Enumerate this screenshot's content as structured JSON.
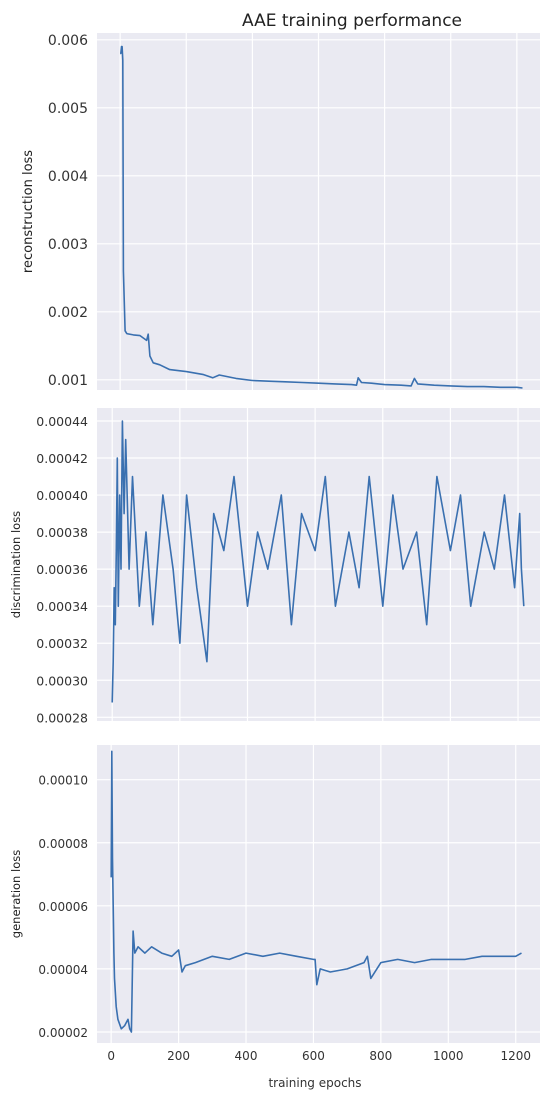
{
  "figure": {
    "title": "AAE training performance",
    "xlabel": "training epochs"
  },
  "colors": {
    "line": "#3a70b0",
    "panel_bg": "#eaeaf2",
    "grid": "#ffffff"
  },
  "chart_data": [
    {
      "type": "line",
      "title": "AAE training performance",
      "ylabel": "reconstruction loss",
      "xlim": [
        -70,
        1270
      ],
      "ylim": [
        0.00085,
        0.0061
      ],
      "yticks": [
        0.001,
        0.002,
        0.003,
        0.004,
        0.005,
        0.006
      ],
      "ytick_labels": [
        "0.001",
        "0.002",
        "0.003",
        "0.004",
        "0.005",
        "0.006"
      ],
      "xgrid": [
        0,
        200,
        400,
        600,
        800,
        1000,
        1200
      ],
      "grid": true,
      "series": [
        {
          "x": [
            0,
            2,
            4,
            6,
            8,
            10,
            15,
            20,
            40,
            60,
            80,
            85,
            90,
            100,
            120,
            150,
            200,
            250,
            280,
            300,
            350,
            400,
            450,
            500,
            550,
            600,
            650,
            700,
            715,
            720,
            730,
            760,
            800,
            850,
            880,
            890,
            900,
            950,
            1000,
            1050,
            1100,
            1150,
            1200,
            1217
          ],
          "y": [
            0.0058,
            0.0058,
            0.0059,
            0.0059,
            0.0057,
            0.0026,
            0.00172,
            0.00168,
            0.00166,
            0.00165,
            0.00158,
            0.00167,
            0.00135,
            0.00125,
            0.00122,
            0.00115,
            0.00112,
            0.00108,
            0.00103,
            0.00107,
            0.00102,
            0.00099,
            0.00098,
            0.00097,
            0.00096,
            0.00095,
            0.00094,
            0.00093,
            0.00092,
            0.00103,
            0.00096,
            0.00095,
            0.00093,
            0.00092,
            0.00091,
            0.00102,
            0.00094,
            0.00092,
            0.00091,
            0.0009,
            0.0009,
            0.00089,
            0.00089,
            0.00088
          ]
        }
      ]
    },
    {
      "type": "line",
      "ylabel": "discrimination loss",
      "xlim": [
        -45,
        1265
      ],
      "ylim": [
        0.000278,
        0.000447
      ],
      "yticks": [
        0.00028,
        0.0003,
        0.00032,
        0.00034,
        0.00036,
        0.00038,
        0.0004,
        0.00042,
        0.00044
      ],
      "ytick_labels": [
        "0.00028",
        "0.00030",
        "0.00032",
        "0.00034",
        "0.00036",
        "0.00038",
        "0.00040",
        "0.00042",
        "0.00044"
      ],
      "xgrid": [
        0,
        200,
        400,
        600,
        800,
        1000,
        1200
      ],
      "grid": true,
      "series": [
        {
          "x": [
            0,
            3,
            6,
            9,
            12,
            15,
            18,
            22,
            26,
            30,
            35,
            40,
            50,
            60,
            80,
            100,
            120,
            150,
            180,
            200,
            220,
            250,
            280,
            300,
            330,
            360,
            400,
            430,
            460,
            500,
            530,
            560,
            600,
            630,
            660,
            700,
            730,
            760,
            800,
            830,
            860,
            900,
            930,
            960,
            1000,
            1030,
            1060,
            1100,
            1130,
            1160,
            1190,
            1205,
            1210,
            1217
          ],
          "y": [
            0.000288,
            0.00031,
            0.00035,
            0.00033,
            0.00037,
            0.00042,
            0.00034,
            0.0004,
            0.00036,
            0.00044,
            0.00039,
            0.00043,
            0.00036,
            0.00041,
            0.00034,
            0.00038,
            0.00033,
            0.0004,
            0.00036,
            0.00032,
            0.0004,
            0.00035,
            0.00031,
            0.00039,
            0.00037,
            0.00041,
            0.00034,
            0.00038,
            0.00036,
            0.0004,
            0.00033,
            0.00039,
            0.00037,
            0.00041,
            0.00034,
            0.00038,
            0.00035,
            0.00041,
            0.00034,
            0.0004,
            0.00036,
            0.00038,
            0.00033,
            0.00041,
            0.00037,
            0.0004,
            0.00034,
            0.00038,
            0.00036,
            0.0004,
            0.00035,
            0.00039,
            0.00036,
            0.00034
          ]
        }
      ]
    },
    {
      "type": "line",
      "ylabel": "generation loss",
      "xlabel": "training epochs",
      "xlim": [
        -42,
        1272
      ],
      "ylim": [
        1.65e-05,
        0.000111
      ],
      "yticks": [
        2e-05,
        4e-05,
        6e-05,
        8e-05,
        0.0001
      ],
      "ytick_labels": [
        "0.00002",
        "0.00004",
        "0.00006",
        "0.00008",
        "0.00010"
      ],
      "xticks": [
        0,
        200,
        400,
        600,
        800,
        1000,
        1200
      ],
      "xtick_labels": [
        "0",
        "200",
        "400",
        "600",
        "800",
        "1000",
        "1200"
      ],
      "grid": true,
      "series": [
        {
          "x": [
            0,
            2,
            4,
            6,
            8,
            10,
            15,
            20,
            30,
            40,
            50,
            55,
            60,
            65,
            70,
            80,
            90,
            100,
            120,
            150,
            180,
            200,
            210,
            215,
            220,
            250,
            300,
            350,
            400,
            450,
            500,
            550,
            600,
            605,
            610,
            620,
            650,
            700,
            750,
            760,
            770,
            800,
            850,
            900,
            950,
            1000,
            1050,
            1100,
            1150,
            1200,
            1217
          ],
          "y": [
            6.9e-05,
            0.000109,
            7.5e-05,
            6e-05,
            4.5e-05,
            3.7e-05,
            2.8e-05,
            2.4e-05,
            2.1e-05,
            2.2e-05,
            2.4e-05,
            2.1e-05,
            2e-05,
            5.2e-05,
            4.5e-05,
            4.7e-05,
            4.6e-05,
            4.5e-05,
            4.7e-05,
            4.5e-05,
            4.4e-05,
            4.6e-05,
            3.9e-05,
            4e-05,
            4.1e-05,
            4.2e-05,
            4.4e-05,
            4.3e-05,
            4.5e-05,
            4.4e-05,
            4.5e-05,
            4.4e-05,
            4.3e-05,
            4.3e-05,
            3.5e-05,
            4e-05,
            3.9e-05,
            4e-05,
            4.2e-05,
            4.4e-05,
            3.7e-05,
            4.2e-05,
            4.3e-05,
            4.2e-05,
            4.3e-05,
            4.3e-05,
            4.3e-05,
            4.4e-05,
            4.4e-05,
            4.4e-05,
            4.5e-05
          ]
        }
      ]
    }
  ]
}
